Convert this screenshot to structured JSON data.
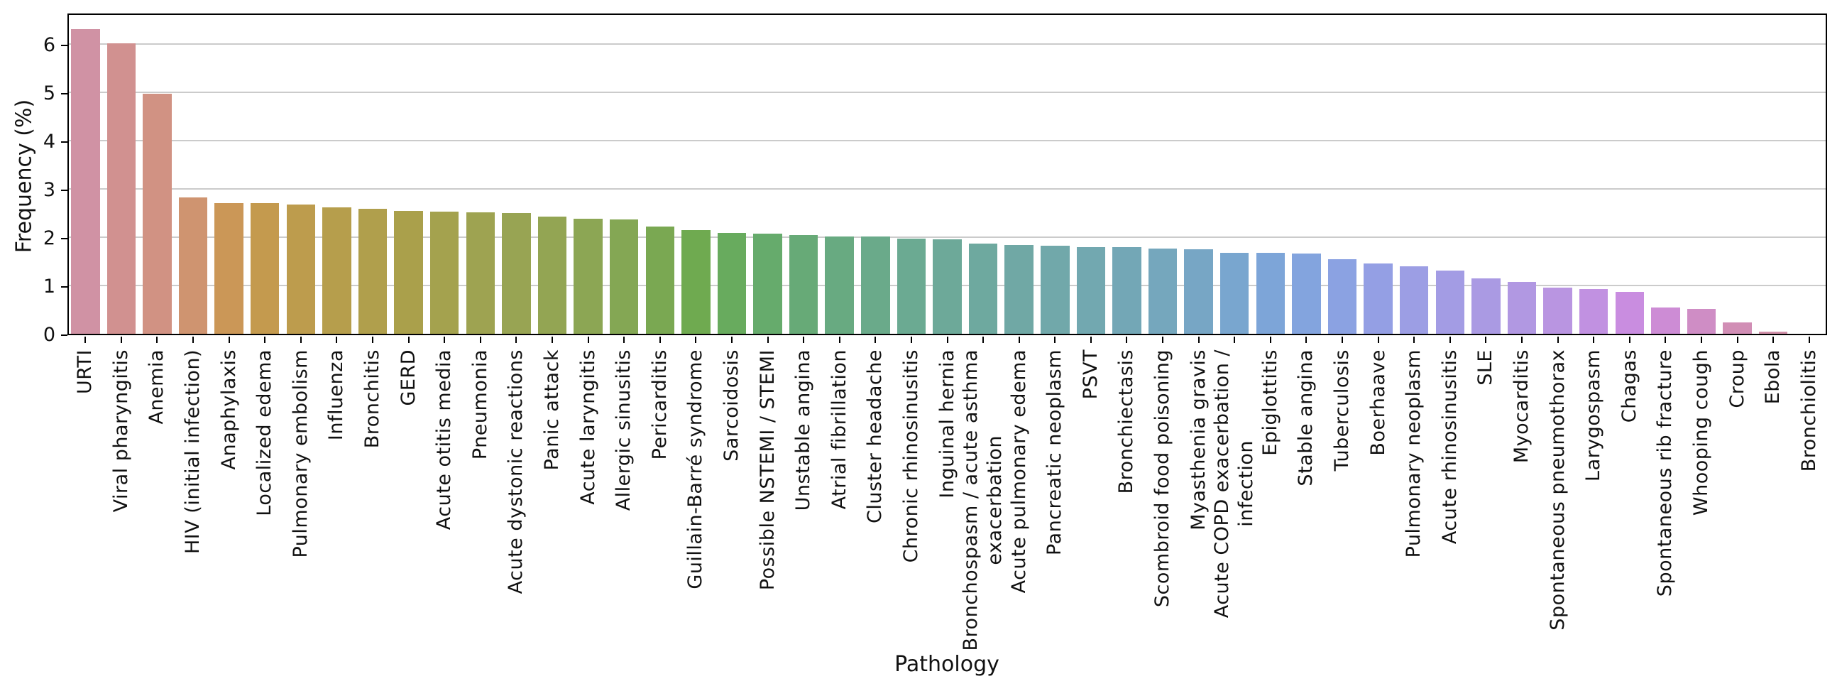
{
  "figure": {
    "background": "#ffffff",
    "axis_color": "#000000",
    "grid_color": "#cbcbcb",
    "text_color": "#111111"
  },
  "chart_data": {
    "type": "bar",
    "title": "",
    "xlabel": "Pathology",
    "ylabel": "Frequency (%)",
    "ylim": [
      0,
      6.66
    ],
    "yticks": [
      0,
      1,
      2,
      3,
      4,
      5,
      6
    ],
    "grid": "horizontal",
    "legend": "none",
    "bar_width_fraction": 0.8,
    "categories": [
      "URTI",
      "Viral pharyngitis",
      "Anemia",
      "HIV (initial infection)",
      "Anaphylaxis",
      "Localized edema",
      "Pulmonary embolism",
      "Influenza",
      "Bronchitis",
      "GERD",
      "Acute otitis media",
      "Pneumonia",
      "Acute dystonic reactions",
      "Panic attack",
      "Acute laryngitis",
      "Allergic sinusitis",
      "Pericarditis",
      "Guillain-Barré syndrome",
      "Sarcoidosis",
      "Possible NSTEMI / STEMI",
      "Unstable angina",
      "Atrial fibrillation",
      "Cluster headache",
      "Chronic rhinosinusitis",
      "Inguinal hernia",
      "Bronchospasm / acute asthma\nexacerbation",
      "Acute pulmonary edema",
      "Pancreatic neoplasm",
      "PSVT",
      "Bronchiectasis",
      "Scombroid food poisoning",
      "Myasthenia gravis",
      "Acute COPD exacerbation /\ninfection",
      "Epiglottitis",
      "Stable angina",
      "Tuberculosis",
      "Boerhaave",
      "Pulmonary neoplasm",
      "Acute rhinosinusitis",
      "SLE",
      "Myocarditis",
      "Spontaneous pneumothorax",
      "Larygospasm",
      "Chagas",
      "Spontaneous rib fracture",
      "Whooping cough",
      "Croup",
      "Ebola",
      "Bronchiolitis"
    ],
    "values": [
      6.33,
      6.05,
      5.0,
      2.85,
      2.74,
      2.73,
      2.71,
      2.64,
      2.61,
      2.57,
      2.56,
      2.55,
      2.53,
      2.46,
      2.41,
      2.4,
      2.25,
      2.17,
      2.11,
      2.1,
      2.07,
      2.05,
      2.04,
      2.0,
      1.98,
      1.89,
      1.87,
      1.86,
      1.83,
      1.82,
      1.8,
      1.78,
      1.71,
      1.7,
      1.69,
      1.58,
      1.49,
      1.42,
      1.34,
      1.17,
      1.1,
      0.99,
      0.96,
      0.89,
      0.57,
      0.55,
      0.27,
      0.07,
      0.02
    ],
    "bar_colors": [
      "#d092a4",
      "#d19190",
      "#d19283",
      "#cf9470",
      "#cb9757",
      "#c49a4e",
      "#bd9c4d",
      "#b69e4c",
      "#b09f4c",
      "#aaa04b",
      "#a4a24e",
      "#9ea351",
      "#98a453",
      "#93a553",
      "#8ca654",
      "#84a754",
      "#7aa852",
      "#6faa50",
      "#68ab5e",
      "#66ab6c",
      "#67aa77",
      "#68aa81",
      "#6aaa8a",
      "#6baa92",
      "#6da999",
      "#6ea99f",
      "#70a8a5",
      "#71a8aa",
      "#72a8b0",
      "#73a7b6",
      "#75a7bd",
      "#77a6c5",
      "#79a6cf",
      "#7da5d8",
      "#83a4de",
      "#8ba2e2",
      "#949fe4",
      "#9c9ee4",
      "#a39ce4",
      "#aa9ae3",
      "#b198e2",
      "#b995e1",
      "#c191e1",
      "#c98de0",
      "#cd8cd5",
      "#cf8dc5",
      "#d18eb5",
      "#d190a9",
      "#d092a6"
    ]
  }
}
